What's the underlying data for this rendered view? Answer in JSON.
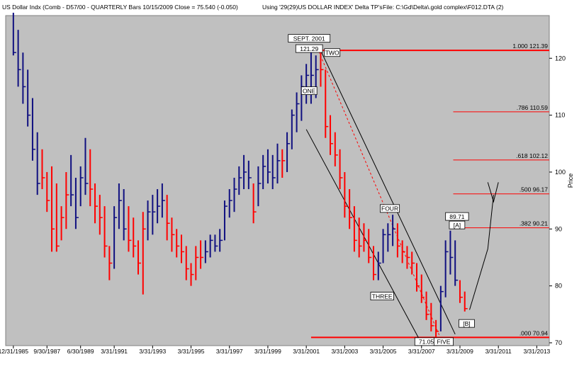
{
  "header": {
    "left": "US Dollar Indx (Comb - D57/00  - QUARTERLY Bars  10/15/2009 Close = 75.540 (-0.050)",
    "middle": "Using '29(29)US DOLLAR INDEX' Delta TP's",
    "right": "File:  C:\\Gd\\Delta\\.gold complex\\F012.DTA (2)"
  },
  "colors": {
    "plot_bg": "#c0c0c0",
    "up_bar": "#101080",
    "down_bar": "#ff0000",
    "fib_line": "#ff0000",
    "channel": "#000000",
    "page_bg": "#ffffff"
  },
  "chart_data": {
    "type": "bar",
    "title": "US Dollar Indx (Comb - D57/00  - QUARTERLY Bars  10/15/2009 Close = 75.540 (-0.050)",
    "ylabel": "Price",
    "ylim": [
      69.5,
      127.5
    ],
    "xlim": [
      1985.6,
      2013.9
    ],
    "y_ticks": [
      70,
      80,
      90,
      100,
      110,
      120
    ],
    "x_ticks": [
      {
        "label": "12/31/1985",
        "x": 1986.0
      },
      {
        "label": "9/30/1987",
        "x": 1987.75
      },
      {
        "label": "6/30/1989",
        "x": 1989.5
      },
      {
        "label": "3/31/1991",
        "x": 1991.25
      },
      {
        "label": "3/31/1993",
        "x": 1993.25
      },
      {
        "label": "3/31/1995",
        "x": 1995.25
      },
      {
        "label": "3/31/1997",
        "x": 1997.25
      },
      {
        "label": "3/31/1999",
        "x": 1999.25
      },
      {
        "label": "3/31/2001",
        "x": 2001.25
      },
      {
        "label": "3/31/2003",
        "x": 2003.25
      },
      {
        "label": "3/31/2005",
        "x": 2005.25
      },
      {
        "label": "3/31/2007",
        "x": 2007.25
      },
      {
        "label": "3/31/2009",
        "x": 2009.25
      },
      {
        "label": "3/31/2011",
        "x": 2011.25
      },
      {
        "label": "3/31/2013",
        "x": 2013.25
      }
    ],
    "series": [
      {
        "bar_style": "ohlc",
        "values": [
          {
            "x": 1986.0,
            "h": 128.0,
            "l": 120.5,
            "c": 121.0,
            "d": 1
          },
          {
            "x": 1986.25,
            "h": 125.0,
            "l": 115.0,
            "c": 118.0,
            "d": 1
          },
          {
            "x": 1986.5,
            "h": 121.0,
            "l": 112.0,
            "c": 115.0,
            "d": 1
          },
          {
            "x": 1986.75,
            "h": 118.0,
            "l": 108.0,
            "c": 110.0,
            "d": 1
          },
          {
            "x": 1987.0,
            "h": 113.0,
            "l": 102.0,
            "c": 104.0,
            "d": 1
          },
          {
            "x": 1987.25,
            "h": 107.0,
            "l": 96.0,
            "c": 98.0,
            "d": 1
          },
          {
            "x": 1987.5,
            "h": 104.0,
            "l": 97.0,
            "c": 99.0,
            "d": 0
          },
          {
            "x": 1987.75,
            "h": 100.0,
            "l": 93.0,
            "c": 95.0,
            "d": 0
          },
          {
            "x": 1988.0,
            "h": 101.0,
            "l": 86.0,
            "c": 90.0,
            "d": 0
          },
          {
            "x": 1988.25,
            "h": 98.0,
            "l": 86.0,
            "c": 87.0,
            "d": 0
          },
          {
            "x": 1988.5,
            "h": 94.0,
            "l": 88.0,
            "c": 92.0,
            "d": 0
          },
          {
            "x": 1988.75,
            "h": 100.0,
            "l": 90.0,
            "c": 96.0,
            "d": 0
          },
          {
            "x": 1989.0,
            "h": 103.0,
            "l": 94.0,
            "c": 96.0,
            "d": 1
          },
          {
            "x": 1989.25,
            "h": 99.0,
            "l": 90.0,
            "c": 92.0,
            "d": 1
          },
          {
            "x": 1989.5,
            "h": 101.0,
            "l": 94.0,
            "c": 99.0,
            "d": 1
          },
          {
            "x": 1989.75,
            "h": 106.0,
            "l": 96.0,
            "c": 98.0,
            "d": 1
          },
          {
            "x": 1990.0,
            "h": 104.0,
            "l": 94.0,
            "c": 97.0,
            "d": 0
          },
          {
            "x": 1990.25,
            "h": 98.0,
            "l": 91.0,
            "c": 94.0,
            "d": 0
          },
          {
            "x": 1990.5,
            "h": 96.0,
            "l": 89.0,
            "c": 92.0,
            "d": 0
          },
          {
            "x": 1990.75,
            "h": 94.0,
            "l": 85.0,
            "c": 87.0,
            "d": 0
          },
          {
            "x": 1991.0,
            "h": 87.0,
            "l": 81.0,
            "c": 84.0,
            "d": 0
          },
          {
            "x": 1991.25,
            "h": 94.0,
            "l": 83.0,
            "c": 92.0,
            "d": 1
          },
          {
            "x": 1991.5,
            "h": 98.0,
            "l": 90.0,
            "c": 95.0,
            "d": 1
          },
          {
            "x": 1991.75,
            "h": 97.0,
            "l": 88.0,
            "c": 90.0,
            "d": 1
          },
          {
            "x": 1992.0,
            "h": 94.0,
            "l": 86.0,
            "c": 88.0,
            "d": 0
          },
          {
            "x": 1992.25,
            "h": 92.0,
            "l": 85.0,
            "c": 87.0,
            "d": 0
          },
          {
            "x": 1992.5,
            "h": 88.0,
            "l": 82.0,
            "c": 84.0,
            "d": 0
          },
          {
            "x": 1992.75,
            "h": 93.0,
            "l": 78.5,
            "c": 90.0,
            "d": 0
          },
          {
            "x": 1993.0,
            "h": 95.0,
            "l": 88.0,
            "c": 93.0,
            "d": 1
          },
          {
            "x": 1993.25,
            "h": 96.0,
            "l": 89.0,
            "c": 93.0,
            "d": 1
          },
          {
            "x": 1993.5,
            "h": 97.0,
            "l": 91.0,
            "c": 94.0,
            "d": 1
          },
          {
            "x": 1993.75,
            "h": 98.0,
            "l": 92.0,
            "c": 95.0,
            "d": 1
          },
          {
            "x": 1994.0,
            "h": 96.0,
            "l": 88.0,
            "c": 91.0,
            "d": 0
          },
          {
            "x": 1994.25,
            "h": 92.0,
            "l": 86.0,
            "c": 89.0,
            "d": 0
          },
          {
            "x": 1994.5,
            "h": 90.0,
            "l": 85.0,
            "c": 87.0,
            "d": 0
          },
          {
            "x": 1994.75,
            "h": 89.0,
            "l": 84.0,
            "c": 86.0,
            "d": 0
          },
          {
            "x": 1995.0,
            "h": 87.0,
            "l": 81.0,
            "c": 83.0,
            "d": 0
          },
          {
            "x": 1995.25,
            "h": 84.0,
            "l": 80.0,
            "c": 82.0,
            "d": 0
          },
          {
            "x": 1995.5,
            "h": 87.0,
            "l": 81.0,
            "c": 85.0,
            "d": 0
          },
          {
            "x": 1995.75,
            "h": 88.0,
            "l": 83.0,
            "c": 85.0,
            "d": 0
          },
          {
            "x": 1996.0,
            "h": 88.0,
            "l": 84.0,
            "c": 86.0,
            "d": 1
          },
          {
            "x": 1996.25,
            "h": 89.0,
            "l": 85.0,
            "c": 88.0,
            "d": 1
          },
          {
            "x": 1996.5,
            "h": 89.0,
            "l": 86.0,
            "c": 87.0,
            "d": 1
          },
          {
            "x": 1996.75,
            "h": 90.0,
            "l": 86.0,
            "c": 88.0,
            "d": 1
          },
          {
            "x": 1997.0,
            "h": 95.0,
            "l": 88.0,
            "c": 94.0,
            "d": 1
          },
          {
            "x": 1997.25,
            "h": 97.0,
            "l": 92.0,
            "c": 95.0,
            "d": 1
          },
          {
            "x": 1997.5,
            "h": 99.0,
            "l": 93.0,
            "c": 97.0,
            "d": 1
          },
          {
            "x": 1997.75,
            "h": 101.0,
            "l": 96.0,
            "c": 99.0,
            "d": 1
          },
          {
            "x": 1998.0,
            "h": 103.0,
            "l": 97.0,
            "c": 100.0,
            "d": 1
          },
          {
            "x": 1998.25,
            "h": 102.0,
            "l": 97.0,
            "c": 99.0,
            "d": 1
          },
          {
            "x": 1998.5,
            "h": 98.0,
            "l": 91.0,
            "c": 93.0,
            "d": 0
          },
          {
            "x": 1998.75,
            "h": 101.0,
            "l": 94.0,
            "c": 98.0,
            "d": 1
          },
          {
            "x": 1999.0,
            "h": 103.0,
            "l": 97.0,
            "c": 101.0,
            "d": 1
          },
          {
            "x": 1999.25,
            "h": 104.0,
            "l": 98.0,
            "c": 100.0,
            "d": 1
          },
          {
            "x": 1999.5,
            "h": 103.0,
            "l": 97.0,
            "c": 99.0,
            "d": 1
          },
          {
            "x": 1999.75,
            "h": 105.0,
            "l": 98.0,
            "c": 102.0,
            "d": 1
          },
          {
            "x": 2000.0,
            "h": 104.0,
            "l": 99.0,
            "c": 102.0,
            "d": 0
          },
          {
            "x": 2000.25,
            "h": 107.0,
            "l": 100.0,
            "c": 105.0,
            "d": 1
          },
          {
            "x": 2000.5,
            "h": 111.0,
            "l": 104.0,
            "c": 110.0,
            "d": 1
          },
          {
            "x": 2000.75,
            "h": 114.0,
            "l": 107.0,
            "c": 112.0,
            "d": 1
          },
          {
            "x": 2001.0,
            "h": 117.0,
            "l": 109.0,
            "c": 115.0,
            "d": 1
          },
          {
            "x": 2001.25,
            "h": 119.0,
            "l": 112.0,
            "c": 117.0,
            "d": 1
          },
          {
            "x": 2001.5,
            "h": 121.3,
            "l": 112.0,
            "c": 117.0,
            "d": 1
          },
          {
            "x": 2001.75,
            "h": 120.5,
            "l": 113.0,
            "c": 118.0,
            "d": 1
          },
          {
            "x": 2002.0,
            "h": 121.4,
            "l": 115.0,
            "c": 118.0,
            "d": 0
          },
          {
            "x": 2002.25,
            "h": 118.0,
            "l": 106.0,
            "c": 108.0,
            "d": 0
          },
          {
            "x": 2002.5,
            "h": 110.0,
            "l": 103.0,
            "c": 105.0,
            "d": 0
          },
          {
            "x": 2002.75,
            "h": 107.0,
            "l": 101.0,
            "c": 103.0,
            "d": 0
          },
          {
            "x": 2003.0,
            "h": 104.0,
            "l": 97.0,
            "c": 99.0,
            "d": 0
          },
          {
            "x": 2003.25,
            "h": 100.0,
            "l": 92.0,
            "c": 94.0,
            "d": 0
          },
          {
            "x": 2003.5,
            "h": 97.0,
            "l": 90.0,
            "c": 92.0,
            "d": 0
          },
          {
            "x": 2003.75,
            "h": 94.0,
            "l": 86.0,
            "c": 88.0,
            "d": 0
          },
          {
            "x": 2004.0,
            "h": 92.0,
            "l": 85.0,
            "c": 87.0,
            "d": 0
          },
          {
            "x": 2004.25,
            "h": 91.0,
            "l": 86.0,
            "c": 88.0,
            "d": 0
          },
          {
            "x": 2004.5,
            "h": 90.0,
            "l": 84.0,
            "c": 85.0,
            "d": 0
          },
          {
            "x": 2004.75,
            "h": 87.0,
            "l": 81.0,
            "c": 82.0,
            "d": 0
          },
          {
            "x": 2005.0,
            "h": 86.0,
            "l": 81.0,
            "c": 84.0,
            "d": 1
          },
          {
            "x": 2005.25,
            "h": 90.0,
            "l": 84.0,
            "c": 89.0,
            "d": 1
          },
          {
            "x": 2005.5,
            "h": 91.0,
            "l": 86.0,
            "c": 89.0,
            "d": 1
          },
          {
            "x": 2005.75,
            "h": 92.5,
            "l": 87.0,
            "c": 90.0,
            "d": 1
          },
          {
            "x": 2006.0,
            "h": 91.0,
            "l": 85.0,
            "c": 87.0,
            "d": 0
          },
          {
            "x": 2006.25,
            "h": 88.0,
            "l": 84.0,
            "c": 86.0,
            "d": 0
          },
          {
            "x": 2006.5,
            "h": 87.0,
            "l": 83.0,
            "c": 85.0,
            "d": 0
          },
          {
            "x": 2006.75,
            "h": 86.0,
            "l": 82.0,
            "c": 84.0,
            "d": 0
          },
          {
            "x": 2007.0,
            "h": 84.0,
            "l": 79.0,
            "c": 80.0,
            "d": 0
          },
          {
            "x": 2007.25,
            "h": 82.0,
            "l": 77.0,
            "c": 78.0,
            "d": 0
          },
          {
            "x": 2007.5,
            "h": 79.0,
            "l": 74.0,
            "c": 75.0,
            "d": 0
          },
          {
            "x": 2007.75,
            "h": 77.0,
            "l": 72.0,
            "c": 73.0,
            "d": 0
          },
          {
            "x": 2008.0,
            "h": 74.0,
            "l": 71.0,
            "c": 72.0,
            "d": 0
          },
          {
            "x": 2008.25,
            "h": 80.0,
            "l": 72.0,
            "c": 79.0,
            "d": 1
          },
          {
            "x": 2008.5,
            "h": 88.0,
            "l": 78.0,
            "c": 86.0,
            "d": 1
          },
          {
            "x": 2008.75,
            "h": 89.7,
            "l": 82.0,
            "c": 85.0,
            "d": 1
          },
          {
            "x": 2009.0,
            "h": 88.0,
            "l": 80.0,
            "c": 81.0,
            "d": 1
          },
          {
            "x": 2009.25,
            "h": 81.0,
            "l": 77.0,
            "c": 78.0,
            "d": 0
          },
          {
            "x": 2009.5,
            "h": 79.0,
            "l": 75.5,
            "c": 76.0,
            "d": 0
          }
        ]
      }
    ],
    "fib_levels": [
      {
        "label": "1.000  121.39",
        "value": 121.39
      },
      {
        "label": ".786  110.59",
        "value": 110.59
      },
      {
        "label": ".618  102.12",
        "value": 102.12
      },
      {
        "label": ".500  96.17",
        "value": 96.17
      },
      {
        "label": ".382  90.21",
        "value": 90.21
      },
      {
        "label": ".000  70.94",
        "value": 70.94
      }
    ],
    "annotations": [
      {
        "text": "SEPT. 2001",
        "x": 2001.4,
        "y": 123.5
      },
      {
        "text": "121.29",
        "x": 2001.4,
        "y": 121.7
      },
      {
        "text": "TWO",
        "x": 2002.6,
        "y": 121.0
      },
      {
        "text": "ONE",
        "x": 2001.4,
        "y": 114.3
      },
      {
        "text": "THREE",
        "x": 2005.2,
        "y": 78.2
      },
      {
        "text": "FOUR",
        "x": 2005.6,
        "y": 93.6
      },
      {
        "text": "71.05",
        "x": 2007.5,
        "y": 70.2
      },
      {
        "text": "FIVE",
        "x": 2008.4,
        "y": 70.2
      },
      {
        "text": "89.71",
        "x": 2009.1,
        "y": 92.2
      },
      {
        "text": "[A]",
        "x": 2009.1,
        "y": 90.7
      },
      {
        "text": "[B]",
        "x": 2009.6,
        "y": 73.4
      }
    ]
  }
}
